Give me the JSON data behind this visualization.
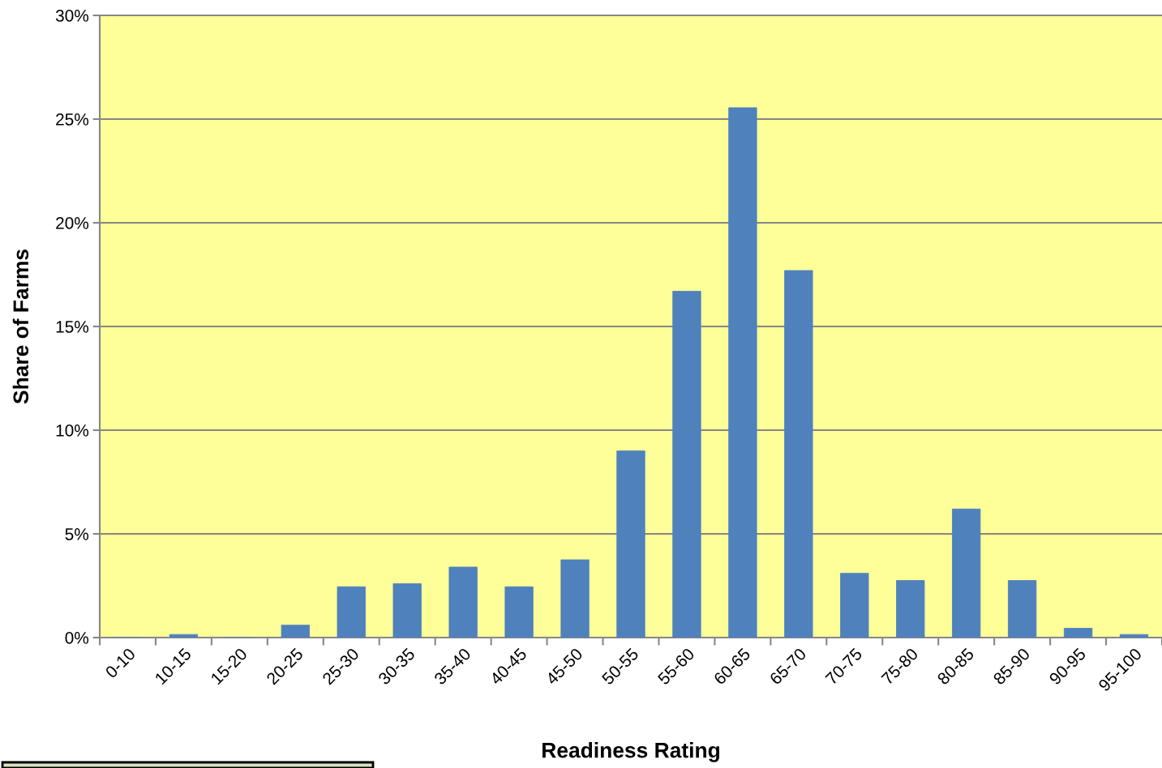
{
  "chart_data": {
    "type": "bar",
    "xlabel": "Readiness Rating",
    "ylabel": "Share of Farms",
    "categories": [
      "0-10",
      "10-15",
      "15-20",
      "20-25",
      "25-30",
      "30-35",
      "35-40",
      "40-45",
      "45-50",
      "50-55",
      "55-60",
      "60-65",
      "65-70",
      "70-75",
      "75-80",
      "80-85",
      "85-90",
      "90-95",
      "95-100"
    ],
    "values": [
      0,
      0.15,
      0,
      0.6,
      2.45,
      2.6,
      3.4,
      2.45,
      3.75,
      9.0,
      16.7,
      25.55,
      17.7,
      3.1,
      2.75,
      6.2,
      2.75,
      0.45,
      0.15
    ],
    "color": "#4f81bd",
    "ylim": [
      0,
      30
    ],
    "yticks": [
      {
        "value": 0,
        "label": "0%"
      },
      {
        "value": 5,
        "label": "5%"
      },
      {
        "value": 10,
        "label": "10%"
      },
      {
        "value": 15,
        "label": "15%"
      },
      {
        "value": 20,
        "label": "20%"
      },
      {
        "value": 25,
        "label": "25%"
      },
      {
        "value": 30,
        "label": "30%"
      }
    ],
    "grid": "y",
    "legend": false
  }
}
